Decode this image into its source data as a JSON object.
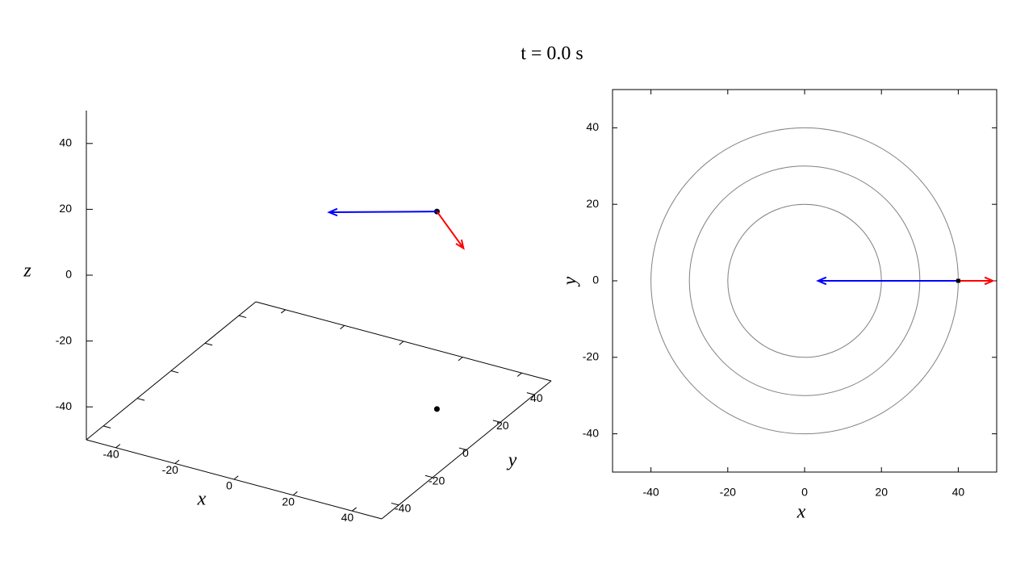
{
  "title": "t = 0.0 s",
  "chart_data": [
    {
      "type": "vector3d",
      "xlabel": "x",
      "ylabel": "y",
      "zlabel": "z",
      "xlim": [
        -50,
        50
      ],
      "ylim": [
        -50,
        50
      ],
      "zlim": [
        -50,
        50
      ],
      "xticks": [
        -40,
        -20,
        0,
        20,
        40
      ],
      "yticks": [
        -40,
        -20,
        0,
        20,
        40
      ],
      "zticks": [
        -40,
        -20,
        0,
        20,
        40
      ],
      "points": {
        "x": [
          40,
          40
        ],
        "y": [
          0,
          0
        ],
        "z": [
          20,
          -40
        ],
        "color": "#000000"
      },
      "vectors": [
        {
          "color": "#ff0000",
          "dx": 9,
          "dy": 0,
          "dz": -9
        },
        {
          "color": "#0000ff",
          "dx": -36.5,
          "dy": 0,
          "dz": -9
        }
      ]
    },
    {
      "type": "vector2d",
      "xlabel": "x",
      "ylabel": "y",
      "xlim": [
        -50,
        50
      ],
      "ylim": [
        -50,
        50
      ],
      "xticks": [
        -40,
        -20,
        0,
        20,
        40
      ],
      "yticks": [
        -40,
        -20,
        0,
        20,
        40
      ],
      "contours": {
        "radii": [
          20,
          30,
          40
        ],
        "color": "#808080"
      },
      "points": {
        "x": [
          40
        ],
        "y": [
          0
        ],
        "color": "#000000"
      },
      "vectors": [
        {
          "color": "#ff0000",
          "dx": 9,
          "dy": 0
        },
        {
          "color": "#0000ff",
          "dx": -36.5,
          "dy": 0
        }
      ]
    }
  ]
}
